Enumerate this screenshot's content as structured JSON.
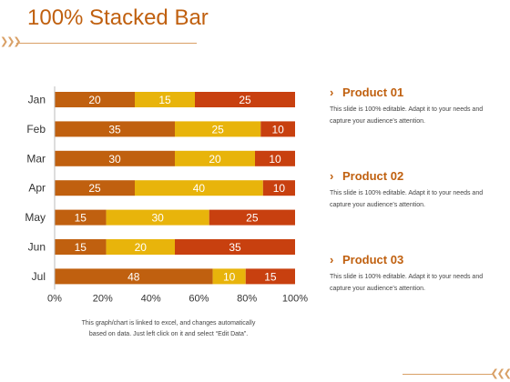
{
  "title": "100% Stacked Bar",
  "note": "This graph/chart is linked to excel, and changes automatically based on data. Just left click on it and select “Edit Data”.",
  "products": [
    {
      "name": "Product 01",
      "desc": "This slide is 100% editable. Adapt it to your needs and capture your audience’s attention."
    },
    {
      "name": "Product 02",
      "desc": "This slide is 100% editable. Adapt it to your needs and capture your audience’s attention."
    },
    {
      "name": "Product 03",
      "desc": "This slide is 100% editable. Adapt it to your needs and capture your audience’s attention."
    }
  ],
  "chart_data": {
    "type": "bar",
    "orientation": "horizontal",
    "stacking": "percent",
    "categories": [
      "Jan",
      "Feb",
      "Mar",
      "Apr",
      "May",
      "Jun",
      "Jul"
    ],
    "series": [
      {
        "values": [
          20,
          35,
          30,
          25,
          15,
          15,
          48
        ],
        "color": "#c0600f"
      },
      {
        "values": [
          15,
          25,
          20,
          40,
          30,
          20,
          10
        ],
        "color": "#e8b40b"
      },
      {
        "values": [
          25,
          10,
          10,
          10,
          25,
          35,
          15
        ],
        "color": "#c8400f"
      }
    ],
    "xticks": [
      "0%",
      "20%",
      "40%",
      "60%",
      "80%",
      "100%"
    ],
    "xlim": [
      0,
      100
    ],
    "grid": false,
    "legend": "none"
  }
}
